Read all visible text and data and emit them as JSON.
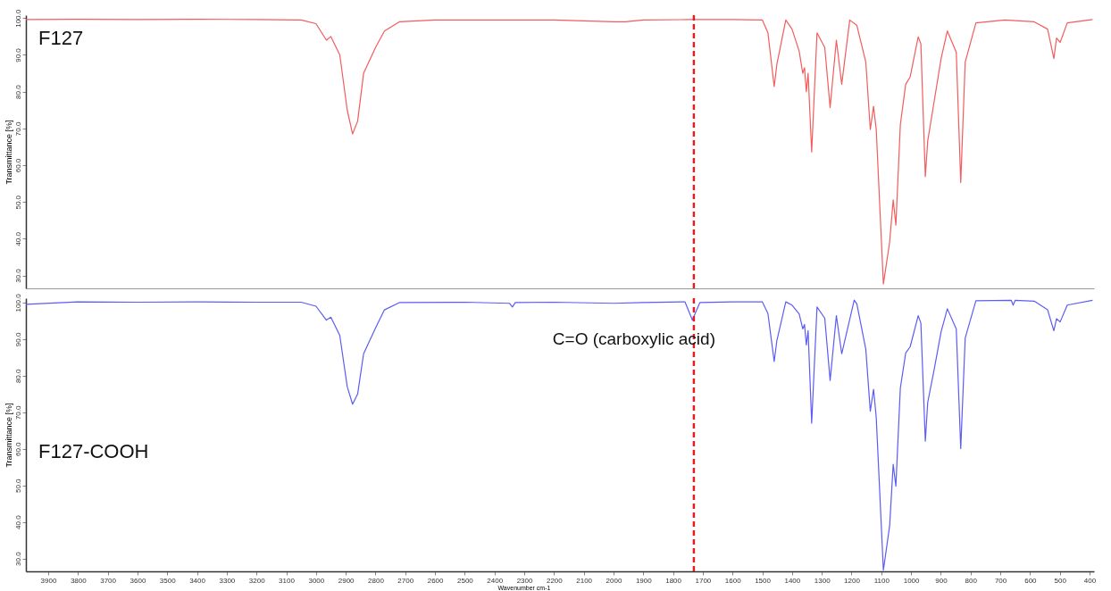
{
  "chart_data": [
    {
      "type": "line",
      "ylabel": "Transmittance [%]",
      "xlim": [
        3975,
        385
      ],
      "ylim": [
        26.5,
        100.8
      ],
      "yticks": [
        {
          "value": 30,
          "label": "30.0"
        },
        {
          "value": 40,
          "label": "40.0"
        },
        {
          "value": 50,
          "label": "50.0"
        },
        {
          "value": 60,
          "label": "60.0"
        },
        {
          "value": 70,
          "label": "70.0"
        },
        {
          "value": 80,
          "label": "80.0"
        },
        {
          "value": 90,
          "label": "90.0"
        },
        {
          "value": 100,
          "label": "100.0"
        }
      ],
      "tick_labels": "y",
      "x": [
        3975,
        3800,
        3600,
        3400,
        3200,
        3050,
        3000,
        2965,
        2950,
        2920,
        2895,
        2877,
        2860,
        2840,
        2800,
        2770,
        2720,
        2600,
        2400,
        2200,
        2000,
        1960,
        1900,
        1750,
        1600,
        1500,
        1481,
        1460,
        1451,
        1421,
        1400,
        1376,
        1364,
        1358,
        1352,
        1346,
        1334,
        1316,
        1290,
        1272,
        1251,
        1233,
        1206,
        1182,
        1152,
        1137,
        1126,
        1117,
        1093,
        1072,
        1060,
        1051,
        1036,
        1018,
        1003,
        976,
        967,
        952,
        944,
        923,
        899,
        878,
        848,
        833,
        818,
        782,
        684,
        586,
        541,
        520,
        511,
        499,
        475,
        390
      ],
      "series": [
        {
          "name": "F127",
          "color": "#f25c5c",
          "values": [
            99.6,
            99.7,
            99.6,
            99.7,
            99.6,
            99.5,
            98.5,
            94,
            95,
            90,
            75,
            68.5,
            72,
            85,
            92,
            96.5,
            99,
            99.5,
            99.5,
            99.5,
            99,
            99,
            99.5,
            99.6,
            99.6,
            99.5,
            96,
            81.4,
            87.4,
            99.5,
            97,
            91,
            85,
            86.5,
            80,
            85,
            63.6,
            96,
            92,
            75.7,
            94,
            82,
            99.5,
            98,
            88,
            69.7,
            76,
            69.7,
            27.7,
            39,
            50.6,
            43.7,
            71,
            82,
            84,
            94.9,
            93,
            56.9,
            66.6,
            77,
            89,
            96.5,
            90.7,
            55.3,
            88,
            98.7,
            99.5,
            99,
            97,
            89,
            94.6,
            93.4,
            98.7,
            99.6
          ]
        }
      ],
      "ref_lines": [
        {
          "axis": "x",
          "value": 1730,
          "color": "#e02020",
          "line_style": "dashed"
        }
      ]
    },
    {
      "type": "line",
      "xlabel": "Wavenumber cm-1",
      "ylabel": "Transmittance [%]",
      "xlim": [
        3975,
        385
      ],
      "ylim": [
        26.5,
        101.2
      ],
      "xticks": [
        3900,
        3800,
        3700,
        3600,
        3500,
        3400,
        3300,
        3200,
        3100,
        3000,
        2900,
        2800,
        2700,
        2600,
        2500,
        2400,
        2300,
        2200,
        2100,
        2000,
        1900,
        1800,
        1700,
        1600,
        1500,
        1400,
        1300,
        1200,
        1100,
        1000,
        900,
        800,
        700,
        600,
        500,
        400
      ],
      "yticks": [
        {
          "value": 30,
          "label": "30.0"
        },
        {
          "value": 40,
          "label": "40.0"
        },
        {
          "value": 50,
          "label": "50.0"
        },
        {
          "value": 60,
          "label": "60.0"
        },
        {
          "value": 70,
          "label": "70.0"
        },
        {
          "value": 80,
          "label": "80.0"
        },
        {
          "value": 90,
          "label": "90.0"
        },
        {
          "value": 100,
          "label": "100.0"
        }
      ],
      "x": [
        3975,
        3800,
        3600,
        3400,
        3200,
        3050,
        3000,
        2965,
        2950,
        2920,
        2895,
        2877,
        2860,
        2840,
        2800,
        2770,
        2720,
        2500,
        2350,
        2340,
        2330,
        2200,
        2000,
        1900,
        1760,
        1735,
        1710,
        1600,
        1500,
        1481,
        1460,
        1451,
        1421,
        1400,
        1376,
        1364,
        1358,
        1352,
        1346,
        1334,
        1316,
        1290,
        1272,
        1251,
        1233,
        1191,
        1182,
        1152,
        1137,
        1126,
        1117,
        1093,
        1072,
        1060,
        1051,
        1036,
        1018,
        1003,
        976,
        967,
        952,
        944,
        923,
        899,
        878,
        848,
        833,
        818,
        782,
        663,
        657,
        650,
        586,
        541,
        520,
        511,
        499,
        475,
        390
      ],
      "series": [
        {
          "name": "F127-COOH",
          "color": "#5c5cf5",
          "values": [
            99.5,
            100.2,
            100.1,
            100.2,
            100.1,
            100.1,
            99,
            95.2,
            96,
            91,
            77,
            72.2,
            75,
            86,
            93,
            98,
            100,
            100.1,
            99.8,
            98.8,
            100,
            100.1,
            99.8,
            100,
            100.2,
            95.2,
            100,
            100.2,
            100.2,
            97,
            83.9,
            89.6,
            100.2,
            99.3,
            96.9,
            92.8,
            94,
            88.4,
            92.3,
            67,
            98.8,
            95.7,
            78.7,
            96.4,
            86,
            100.7,
            99.6,
            87.2,
            70.3,
            76.3,
            68.6,
            26.8,
            38.9,
            55.8,
            49.8,
            76.6,
            86.2,
            87.9,
            96.4,
            94.4,
            62.1,
            72.7,
            81.4,
            92,
            98.3,
            92.8,
            60.1,
            90.3,
            100.5,
            100.6,
            99.3,
            100.6,
            100.4,
            98,
            92.3,
            95.6,
            94.7,
            99.3,
            100.6
          ]
        }
      ],
      "ref_lines": [
        {
          "axis": "x",
          "value": 1730,
          "color": "#e02020",
          "line_style": "dashed"
        }
      ],
      "annotations": [
        {
          "text": "C=O (carboxylic acid)",
          "x": 1730,
          "y": 95.2
        }
      ]
    }
  ]
}
